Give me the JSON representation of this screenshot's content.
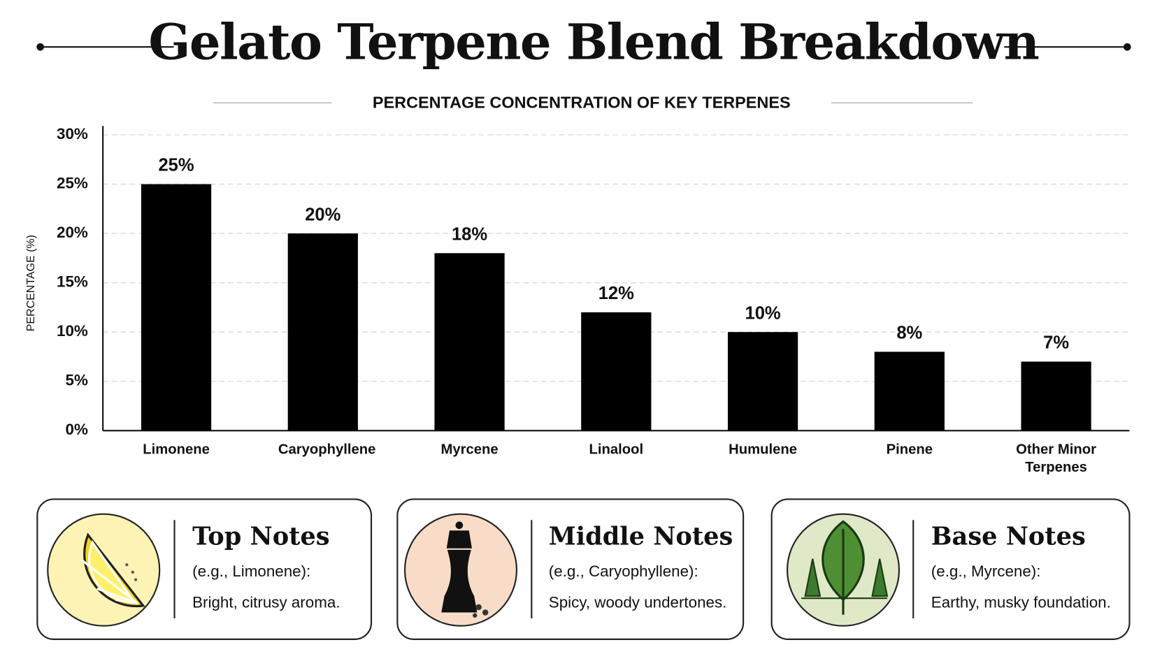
{
  "chart_data": {
    "type": "bar",
    "title": "Gelato Terpene Blend Breakdown",
    "subtitle": "PERCENTAGE CONCENTRATION OF KEY TERPENES",
    "y_label": "PERCENTAGE (%)",
    "categories": [
      "Limonene",
      "Caryophyllene",
      "Myrcene",
      "Linalool",
      "Humulene",
      "Pinene",
      "Other Minor Terpenes"
    ],
    "values": [
      25,
      20,
      18,
      12,
      10,
      8,
      7
    ],
    "value_labels": [
      "25%",
      "20%",
      "18%",
      "12%",
      "10%",
      "8%",
      "7%"
    ],
    "color": "#000000",
    "ylim": [
      0,
      30
    ],
    "yticks": [
      {
        "value": 0,
        "label": "0%"
      },
      {
        "value": 5,
        "label": "5%"
      },
      {
        "value": 10,
        "label": "10%"
      },
      {
        "value": 15,
        "label": "15%"
      },
      {
        "value": 20,
        "label": "20%"
      },
      {
        "value": 25,
        "label": "25%"
      },
      {
        "value": 30,
        "label": "30%"
      }
    ],
    "grid": true
  },
  "notes": [
    {
      "title": "Top Notes",
      "example": "(e.g., Limonene):",
      "description": "Bright, citrusy aroma."
    },
    {
      "title": "Middle Notes",
      "example": "(e.g., Caryophyllene):",
      "description": "Spicy, woody undertones."
    },
    {
      "title": "Base Notes",
      "example": "(e.g., Myrcene):",
      "description": "Earthy, musky foundation."
    }
  ]
}
